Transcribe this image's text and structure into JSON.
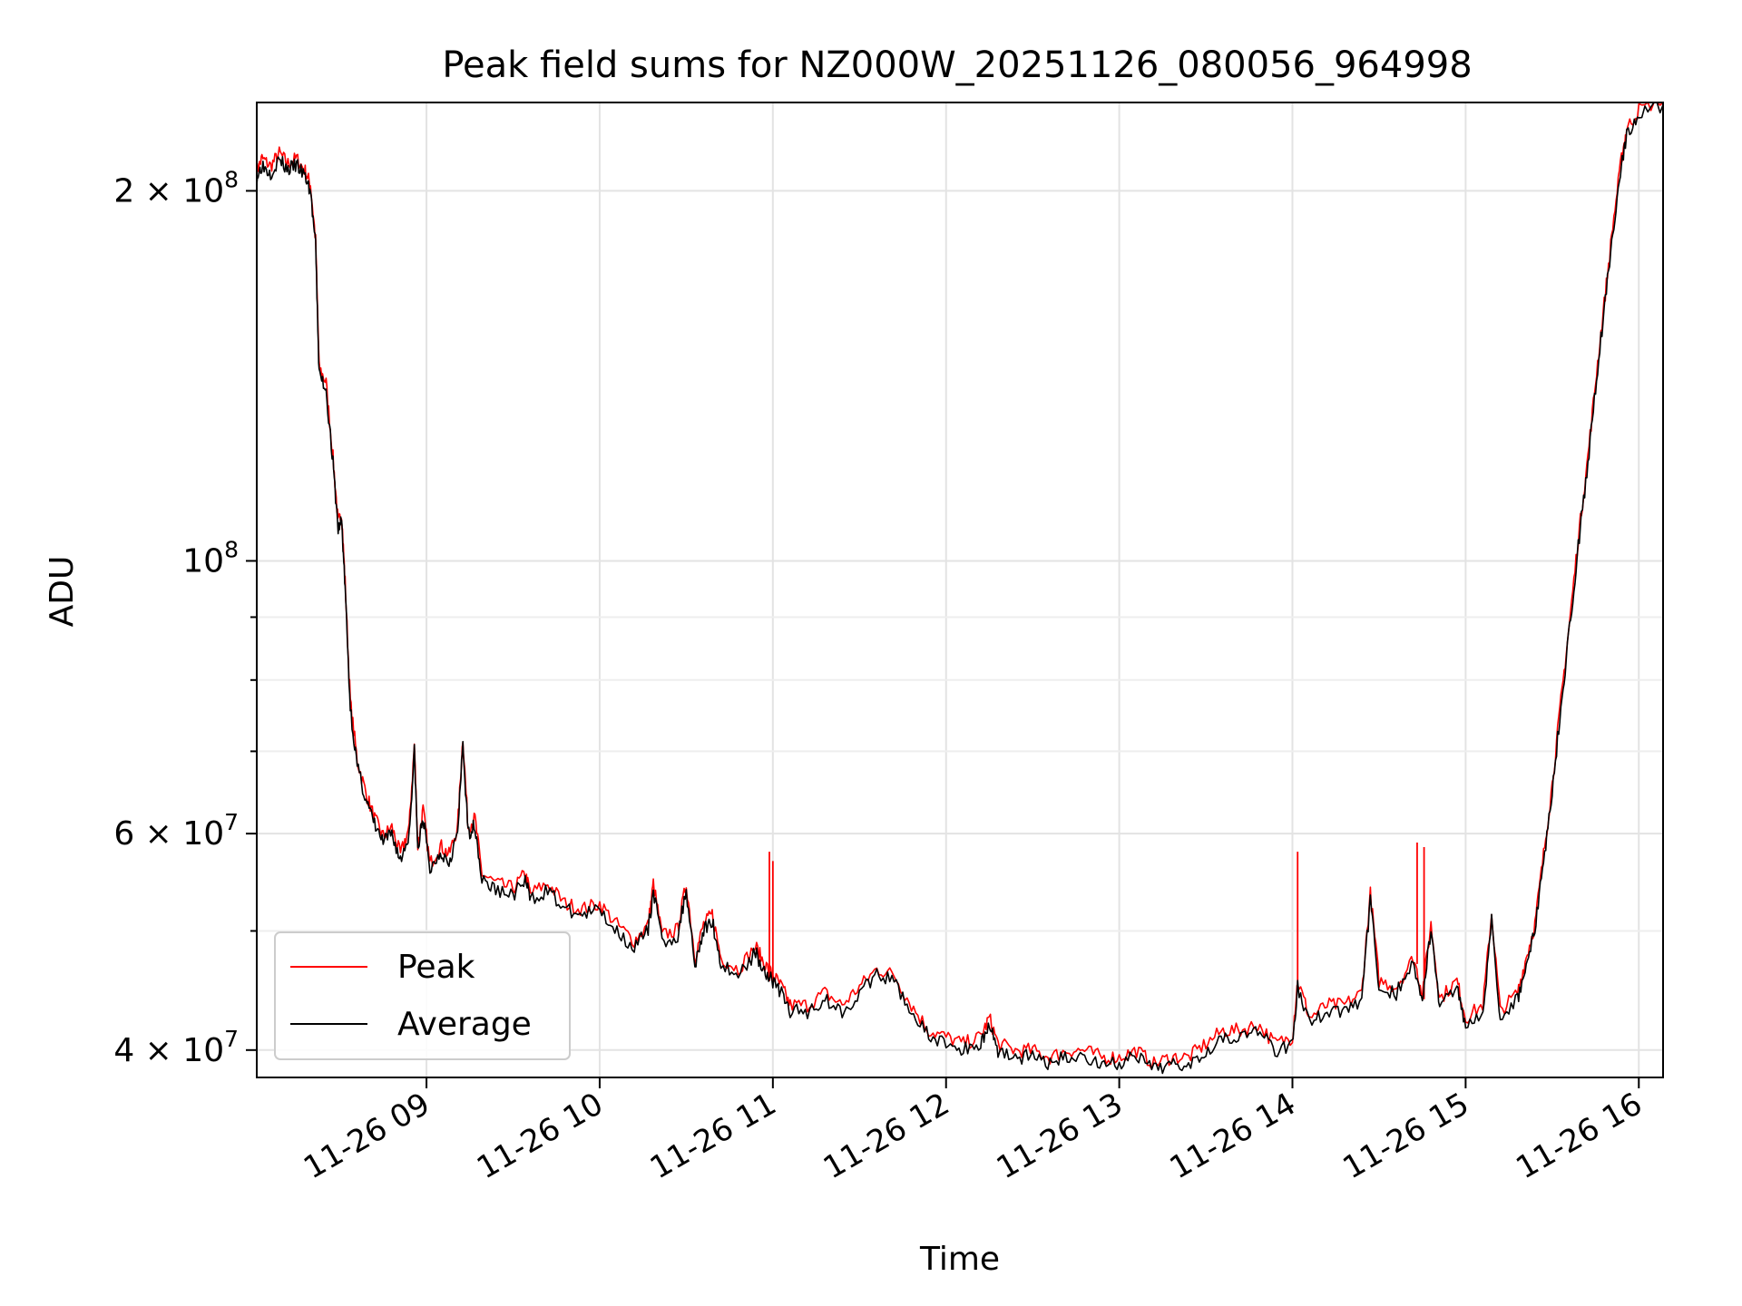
{
  "chart_data": {
    "type": "line",
    "title": "Peak field sums for NZ000W_20251126_080056_964998",
    "xlabel": "Time",
    "ylabel": "ADU",
    "yscale": "log",
    "ylim": [
      38000000,
      236000000
    ],
    "xlim_hours": [
      8.02,
      16.14
    ],
    "grid": true,
    "legend_position": "lower-left",
    "x_ticks": [
      {
        "hour": 9,
        "label": "11-26 09"
      },
      {
        "hour": 10,
        "label": "11-26 10"
      },
      {
        "hour": 11,
        "label": "11-26 11"
      },
      {
        "hour": 12,
        "label": "11-26 12"
      },
      {
        "hour": 13,
        "label": "11-26 13"
      },
      {
        "hour": 14,
        "label": "11-26 14"
      },
      {
        "hour": 15,
        "label": "11-26 15"
      },
      {
        "hour": 16,
        "label": "11-26 16"
      }
    ],
    "y_ticks": [
      {
        "value": 40000000,
        "base": "4 × 10",
        "exp": "7"
      },
      {
        "value": 60000000,
        "base": "6 × 10",
        "exp": "7"
      },
      {
        "value": 100000000,
        "base": "10",
        "exp": "8"
      },
      {
        "value": 200000000,
        "base": "2 × 10",
        "exp": "8"
      }
    ],
    "y_minor_ticks": [
      50000000,
      70000000,
      80000000,
      90000000
    ],
    "series": [
      {
        "name": "Peak",
        "color": "#ff0000",
        "spikes": [
          {
            "hour": 10.98,
            "value": 58000000
          },
          {
            "hour": 11.0,
            "value": 57000000
          },
          {
            "hour": 14.03,
            "value": 58000000
          },
          {
            "hour": 14.72,
            "value": 59000000
          },
          {
            "hour": 14.76,
            "value": 58500000
          }
        ]
      },
      {
        "name": "Average",
        "color": "#000000",
        "points": [
          [
            8.02,
            205000000
          ],
          [
            8.05,
            210000000
          ],
          [
            8.1,
            207000000
          ],
          [
            8.15,
            212000000
          ],
          [
            8.2,
            208000000
          ],
          [
            8.25,
            210000000
          ],
          [
            8.3,
            205000000
          ],
          [
            8.33,
            200000000
          ],
          [
            8.36,
            180000000
          ],
          [
            8.38,
            142000000
          ],
          [
            8.42,
            138000000
          ],
          [
            8.46,
            120000000
          ],
          [
            8.49,
            106000000
          ],
          [
            8.51,
            108000000
          ],
          [
            8.53,
            95000000
          ],
          [
            8.56,
            76000000
          ],
          [
            8.6,
            68000000
          ],
          [
            8.65,
            64000000
          ],
          [
            8.7,
            61000000
          ],
          [
            8.75,
            59000000
          ],
          [
            8.8,
            60000000
          ],
          [
            8.85,
            57000000
          ],
          [
            8.9,
            60000000
          ],
          [
            8.93,
            70000000
          ],
          [
            8.95,
            58000000
          ],
          [
            8.98,
            62000000
          ],
          [
            9.02,
            56000000
          ],
          [
            9.08,
            58000000
          ],
          [
            9.13,
            57000000
          ],
          [
            9.18,
            60000000
          ],
          [
            9.21,
            71000000
          ],
          [
            9.24,
            60000000
          ],
          [
            9.28,
            61000000
          ],
          [
            9.32,
            55000000
          ],
          [
            9.4,
            54000000
          ],
          [
            9.5,
            53500000
          ],
          [
            9.57,
            55000000
          ],
          [
            9.6,
            53000000
          ],
          [
            9.7,
            54000000
          ],
          [
            9.8,
            52000000
          ],
          [
            9.9,
            51500000
          ],
          [
            10.0,
            52000000
          ],
          [
            10.1,
            50000000
          ],
          [
            10.2,
            48500000
          ],
          [
            10.28,
            50000000
          ],
          [
            10.31,
            54000000
          ],
          [
            10.36,
            49000000
          ],
          [
            10.45,
            49500000
          ],
          [
            10.5,
            54000000
          ],
          [
            10.55,
            47000000
          ],
          [
            10.6,
            50000000
          ],
          [
            10.65,
            51000000
          ],
          [
            10.7,
            47000000
          ],
          [
            10.8,
            46000000
          ],
          [
            10.9,
            48000000
          ],
          [
            10.95,
            46500000
          ],
          [
            11.0,
            45500000
          ],
          [
            11.05,
            44500000
          ],
          [
            11.1,
            43000000
          ],
          [
            11.2,
            43000000
          ],
          [
            11.3,
            44000000
          ],
          [
            11.4,
            43000000
          ],
          [
            11.5,
            44500000
          ],
          [
            11.6,
            46000000
          ],
          [
            11.7,
            45500000
          ],
          [
            11.8,
            43000000
          ],
          [
            11.9,
            41000000
          ],
          [
            12.0,
            40500000
          ],
          [
            12.1,
            40000000
          ],
          [
            12.2,
            40500000
          ],
          [
            12.25,
            42000000
          ],
          [
            12.3,
            40000000
          ],
          [
            12.4,
            39500000
          ],
          [
            12.5,
            39500000
          ],
          [
            12.6,
            39000000
          ],
          [
            12.7,
            39500000
          ],
          [
            12.8,
            39500000
          ],
          [
            12.9,
            39000000
          ],
          [
            13.0,
            39000000
          ],
          [
            13.1,
            39500000
          ],
          [
            13.2,
            38500000
          ],
          [
            13.3,
            39000000
          ],
          [
            13.4,
            39000000
          ],
          [
            13.5,
            40000000
          ],
          [
            13.6,
            41000000
          ],
          [
            13.7,
            41000000
          ],
          [
            13.8,
            41500000
          ],
          [
            13.9,
            40000000
          ],
          [
            14.0,
            40500000
          ],
          [
            14.03,
            45000000
          ],
          [
            14.1,
            42000000
          ],
          [
            14.2,
            43000000
          ],
          [
            14.3,
            43000000
          ],
          [
            14.4,
            44000000
          ],
          [
            14.45,
            53000000
          ],
          [
            14.5,
            45000000
          ],
          [
            14.6,
            44500000
          ],
          [
            14.7,
            47000000
          ],
          [
            14.75,
            44000000
          ],
          [
            14.8,
            50000000
          ],
          [
            14.85,
            43500000
          ],
          [
            14.95,
            45000000
          ],
          [
            15.0,
            42000000
          ],
          [
            15.1,
            43000000
          ],
          [
            15.15,
            51000000
          ],
          [
            15.2,
            42500000
          ],
          [
            15.3,
            44000000
          ],
          [
            15.35,
            47000000
          ],
          [
            15.4,
            50000000
          ],
          [
            15.45,
            57000000
          ],
          [
            15.5,
            65000000
          ],
          [
            15.55,
            76000000
          ],
          [
            15.6,
            88000000
          ],
          [
            15.65,
            103000000
          ],
          [
            15.7,
            118000000
          ],
          [
            15.75,
            138000000
          ],
          [
            15.8,
            160000000
          ],
          [
            15.85,
            185000000
          ],
          [
            15.9,
            210000000
          ],
          [
            15.93,
            222000000
          ],
          [
            16.0,
            230000000
          ],
          [
            16.14,
            235000000
          ]
        ]
      }
    ]
  }
}
